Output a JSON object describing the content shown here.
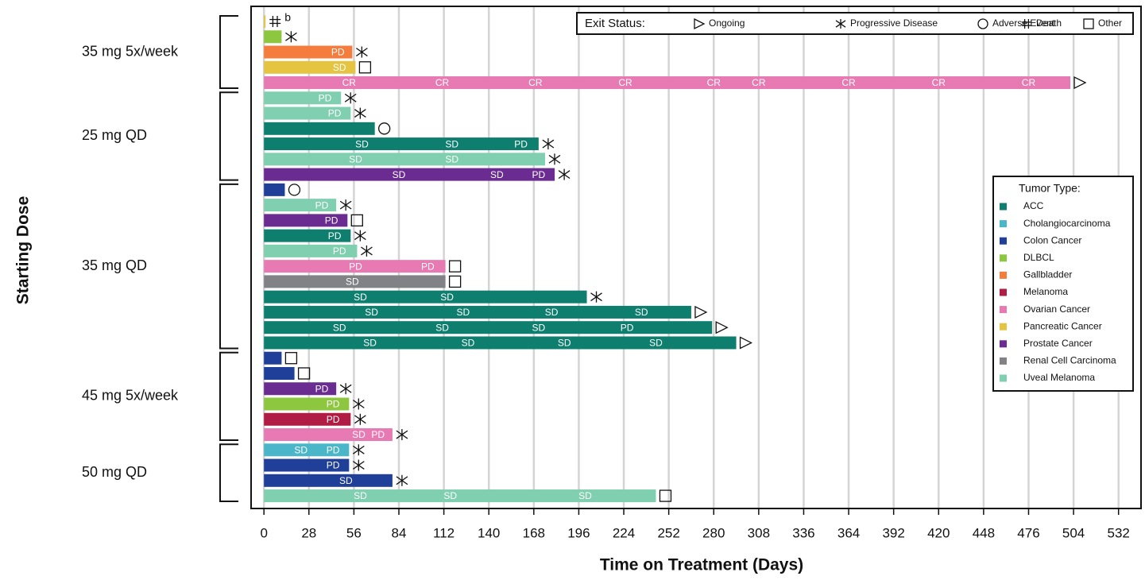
{
  "chart_data": {
    "type": "swimmer",
    "xlabel": "Time on Treatment (Days)",
    "ylabel": "Starting Dose",
    "xlim": [
      -8,
      546
    ],
    "xticks": [
      0,
      28,
      56,
      84,
      112,
      140,
      168,
      196,
      224,
      252,
      280,
      308,
      336,
      364,
      392,
      420,
      448,
      476,
      504,
      532
    ],
    "grid": true,
    "exit_legend": {
      "title": "Exit Status:",
      "items": [
        {
          "label": "Ongoing",
          "symbol": "triangle"
        },
        {
          "label": "Progressive Disease",
          "symbol": "asterisk"
        },
        {
          "label": "Adverse Event",
          "symbol": "circle"
        },
        {
          "label": "Death",
          "symbol": "hash"
        },
        {
          "label": "Other",
          "symbol": "square"
        }
      ]
    },
    "tumor_legend": {
      "title": "Tumor Type:",
      "items": [
        {
          "label": "ACC",
          "color": "#0e7f6e"
        },
        {
          "label": "Cholangiocarcinoma",
          "color": "#4bb6c8"
        },
        {
          "label": "Colon Cancer",
          "color": "#1f3f99"
        },
        {
          "label": "DLBCL",
          "color": "#8dc63f"
        },
        {
          "label": "Gallbladder",
          "color": "#f47c3c"
        },
        {
          "label": "Melanoma",
          "color": "#b01c44"
        },
        {
          "label": "Ovarian Cancer",
          "color": "#e87ab3"
        },
        {
          "label": "Pancreatic Cancer",
          "color": "#e4c441"
        },
        {
          "label": "Prostate Cancer",
          "color": "#6a2c91"
        },
        {
          "label": "Renal Cell Carcinoma",
          "color": "#808285"
        },
        {
          "label": "Uveal Melanoma",
          "color": "#7fcfb0"
        }
      ]
    },
    "groups": [
      {
        "label": "35 mg 5x/week",
        "patients": [
          {
            "days": 1,
            "tumor": "Pancreatic Cancer",
            "exit": "Death",
            "exit_note": "b",
            "labels": []
          },
          {
            "days": 11,
            "tumor": "DLBCL",
            "exit": "Progressive Disease",
            "labels": []
          },
          {
            "days": 55,
            "tumor": "Gallbladder",
            "exit": "Progressive Disease",
            "labels": [
              {
                "day": 46,
                "text": "PD"
              }
            ]
          },
          {
            "days": 57,
            "tumor": "Pancreatic Cancer",
            "exit": "Other",
            "labels": [
              {
                "day": 47,
                "text": "SD"
              }
            ]
          },
          {
            "days": 502,
            "tumor": "Ovarian Cancer",
            "exit": "Ongoing",
            "labels": [
              {
                "day": 53,
                "text": "CR"
              },
              {
                "day": 111,
                "text": "CR"
              },
              {
                "day": 169,
                "text": "CR"
              },
              {
                "day": 225,
                "text": "CR"
              },
              {
                "day": 280,
                "text": "CR"
              },
              {
                "day": 308,
                "text": "CR"
              },
              {
                "day": 364,
                "text": "CR"
              },
              {
                "day": 420,
                "text": "CR"
              },
              {
                "day": 476,
                "text": "CR"
              }
            ]
          }
        ]
      },
      {
        "label": "25 mg QD",
        "patients": [
          {
            "days": 48,
            "tumor": "Uveal Melanoma",
            "exit": "Progressive Disease",
            "labels": [
              {
                "day": 38,
                "text": "PD"
              }
            ]
          },
          {
            "days": 54,
            "tumor": "Uveal Melanoma",
            "exit": "Progressive Disease",
            "labels": [
              {
                "day": 44,
                "text": "PD"
              }
            ]
          },
          {
            "days": 69,
            "tumor": "ACC",
            "exit": "Adverse Event",
            "labels": []
          },
          {
            "days": 171,
            "tumor": "ACC",
            "exit": "Progressive Disease",
            "labels": [
              {
                "day": 61,
                "text": "SD"
              },
              {
                "day": 117,
                "text": "SD"
              },
              {
                "day": 160,
                "text": "PD"
              }
            ]
          },
          {
            "days": 175,
            "tumor": "Uveal Melanoma",
            "exit": "Progressive Disease",
            "labels": [
              {
                "day": 57,
                "text": "SD"
              },
              {
                "day": 117,
                "text": "SD"
              }
            ]
          },
          {
            "days": 181,
            "tumor": "Prostate Cancer",
            "exit": "Progressive Disease",
            "labels": [
              {
                "day": 84,
                "text": "SD"
              },
              {
                "day": 145,
                "text": "SD"
              },
              {
                "day": 171,
                "text": "PD"
              }
            ]
          }
        ]
      },
      {
        "label": "35 mg QD",
        "patients": [
          {
            "days": 13,
            "tumor": "Colon Cancer",
            "exit": "Adverse Event",
            "labels": []
          },
          {
            "days": 45,
            "tumor": "Uveal Melanoma",
            "exit": "Progressive Disease",
            "labels": [
              {
                "day": 36,
                "text": "PD"
              }
            ]
          },
          {
            "days": 52,
            "tumor": "Prostate Cancer",
            "exit": "Other",
            "labels": [
              {
                "day": 42,
                "text": "PD"
              }
            ]
          },
          {
            "days": 54,
            "tumor": "ACC",
            "exit": "Progressive Disease",
            "labels": [
              {
                "day": 44,
                "text": "PD"
              }
            ]
          },
          {
            "days": 58,
            "tumor": "Uveal Melanoma",
            "exit": "Progressive Disease",
            "labels": [
              {
                "day": 47,
                "text": "PD"
              }
            ]
          },
          {
            "days": 113,
            "tumor": "Ovarian Cancer",
            "exit": "Other",
            "labels": [
              {
                "day": 57,
                "text": "PD"
              },
              {
                "day": 102,
                "text": "PD"
              }
            ]
          },
          {
            "days": 113,
            "tumor": "Renal Cell Carcinoma",
            "exit": "Other",
            "labels": [
              {
                "day": 55,
                "text": "SD"
              }
            ]
          },
          {
            "days": 201,
            "tumor": "ACC",
            "exit": "Progressive Disease",
            "labels": [
              {
                "day": 60,
                "text": "SD"
              },
              {
                "day": 114,
                "text": "SD"
              }
            ]
          },
          {
            "days": 266,
            "tumor": "ACC",
            "exit": "Ongoing",
            "labels": [
              {
                "day": 67,
                "text": "SD"
              },
              {
                "day": 124,
                "text": "SD"
              },
              {
                "day": 179,
                "text": "SD"
              },
              {
                "day": 235,
                "text": "SD"
              }
            ]
          },
          {
            "days": 279,
            "tumor": "ACC",
            "exit": "Ongoing",
            "labels": [
              {
                "day": 47,
                "text": "SD"
              },
              {
                "day": 111,
                "text": "SD"
              },
              {
                "day": 171,
                "text": "SD"
              },
              {
                "day": 226,
                "text": "PD"
              }
            ]
          },
          {
            "days": 294,
            "tumor": "ACC",
            "exit": "Ongoing",
            "labels": [
              {
                "day": 66,
                "text": "SD"
              },
              {
                "day": 127,
                "text": "SD"
              },
              {
                "day": 187,
                "text": "SD"
              },
              {
                "day": 244,
                "text": "SD"
              }
            ]
          }
        ]
      },
      {
        "label": "45 mg 5x/week",
        "patients": [
          {
            "days": 11,
            "tumor": "Colon Cancer",
            "exit": "Other",
            "labels": []
          },
          {
            "days": 19,
            "tumor": "Colon Cancer",
            "exit": "Other",
            "labels": []
          },
          {
            "days": 45,
            "tumor": "Prostate Cancer",
            "exit": "Progressive Disease",
            "labels": [
              {
                "day": 36,
                "text": "PD"
              }
            ]
          },
          {
            "days": 53,
            "tumor": "DLBCL",
            "exit": "Progressive Disease",
            "labels": [
              {
                "day": 43,
                "text": "PD"
              }
            ]
          },
          {
            "days": 54,
            "tumor": "Melanoma",
            "exit": "Progressive Disease",
            "labels": [
              {
                "day": 43,
                "text": "PD"
              }
            ]
          },
          {
            "days": 80,
            "tumor": "Ovarian Cancer",
            "exit": "Progressive Disease",
            "labels": [
              {
                "day": 59,
                "text": "SD"
              },
              {
                "day": 71,
                "text": "PD"
              }
            ]
          }
        ]
      },
      {
        "label": "50 mg QD",
        "patients": [
          {
            "days": 53,
            "tumor": "Cholangiocarcinoma",
            "exit": "Progressive Disease",
            "labels": [
              {
                "day": 23,
                "text": "SD"
              },
              {
                "day": 43,
                "text": "PD"
              }
            ]
          },
          {
            "days": 53,
            "tumor": "Colon Cancer",
            "exit": "Progressive Disease",
            "labels": [
              {
                "day": 43,
                "text": "PD"
              }
            ]
          },
          {
            "days": 80,
            "tumor": "Colon Cancer",
            "exit": "Progressive Disease",
            "labels": [
              {
                "day": 51,
                "text": "SD"
              }
            ]
          },
          {
            "days": 244,
            "tumor": "Uveal Melanoma",
            "exit": "Other",
            "labels": [
              {
                "day": 60,
                "text": "SD"
              },
              {
                "day": 116,
                "text": "SD"
              },
              {
                "day": 200,
                "text": "SD"
              }
            ]
          }
        ]
      }
    ]
  }
}
